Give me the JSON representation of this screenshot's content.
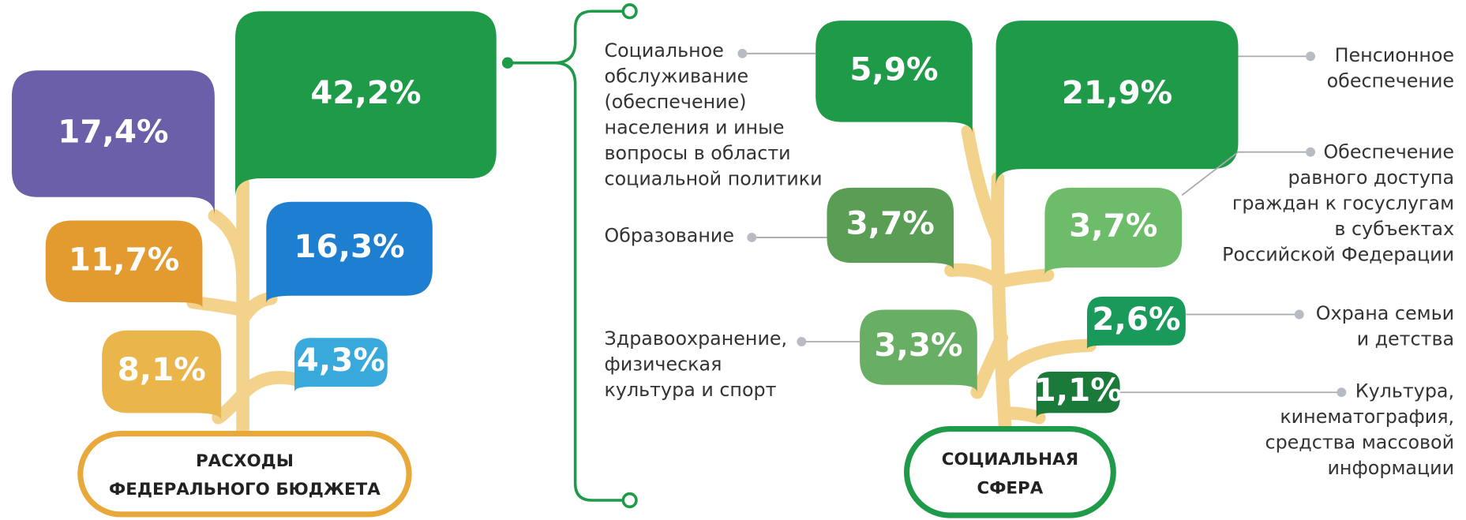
{
  "left_tree": {
    "label_lines": [
      "РАСХОДЫ",
      "ФЕДЕРАЛЬНОГО БЮДЖЕТА"
    ],
    "leaves": [
      {
        "value": "42,2%"
      },
      {
        "value": "17,4%"
      },
      {
        "value": "11,7%"
      },
      {
        "value": "16,3%"
      },
      {
        "value": "8,1%"
      },
      {
        "value": "4,3%"
      }
    ]
  },
  "right_tree": {
    "label_lines": [
      "СОЦИАЛЬНАЯ",
      "СФЕРА"
    ],
    "leaves": [
      {
        "value": "5,9%",
        "label_lines": [
          "Социальное",
          "обслуживание",
          "(обеспечение)",
          "населения и иные",
          "вопросы в области",
          "социальной политики"
        ]
      },
      {
        "value": "21,9%",
        "label_lines": [
          "Пенсионное",
          "обеспечение"
        ]
      },
      {
        "value": "3,7%",
        "label_lines": [
          "Образование"
        ]
      },
      {
        "value": "3,7%",
        "label_lines": [
          "Обеспечение",
          "равного доступа",
          "граждан к госуслугам",
          "в субъектах",
          "Российской Федерации"
        ]
      },
      {
        "value": "3,3%",
        "label_lines": [
          "Здравоохранение,",
          "физическая",
          "культура и спорт"
        ]
      },
      {
        "value": "2,6%",
        "label_lines": [
          "Охрана семьи",
          "и детства"
        ]
      },
      {
        "value": "1,1%",
        "label_lines": [
          "Культура,",
          "кинематография,",
          "средства массовой",
          "информации"
        ]
      }
    ]
  }
}
